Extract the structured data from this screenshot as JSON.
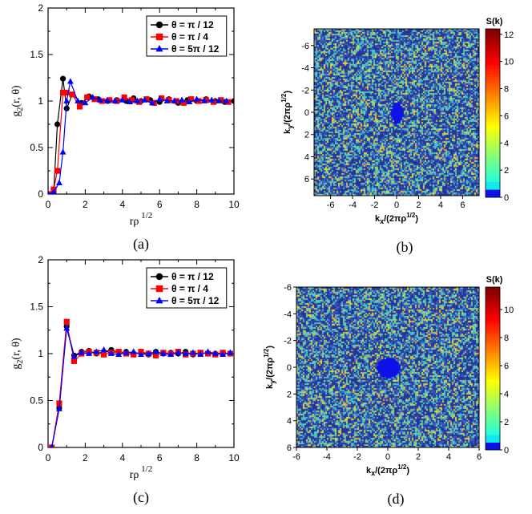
{
  "chart_data": [
    {
      "id": "a",
      "type": "line",
      "caption": "(a)",
      "xlabel": "rρ",
      "xlabel_sup": "1/2",
      "ylabel": "g",
      "ylabel_sub": "2",
      "ylabel_tail": "(r, θ)",
      "xlim": [
        0,
        10
      ],
      "ylim": [
        0,
        2
      ],
      "xticks": [
        "0",
        "2",
        "4",
        "6",
        "8",
        "10"
      ],
      "yticks": [
        "0",
        "0.5",
        "1",
        "1.5",
        "2"
      ],
      "series": [
        {
          "name": "θ = π / 12",
          "color": "#000000",
          "marker": "circle",
          "x": [
            0,
            0.3,
            0.5,
            0.8,
            1.0,
            1.3,
            1.8,
            2.2,
            2.7,
            3.2,
            3.7,
            4.2,
            4.6,
            5.0,
            5.5,
            6.0,
            6.5,
            7.0,
            7.5,
            8.0,
            8.5,
            9.0,
            9.5,
            10.0
          ],
          "y": [
            0,
            0.02,
            0.75,
            1.24,
            0.92,
            1.07,
            0.98,
            1.05,
            1.02,
            1.0,
            1.01,
            1.0,
            1.03,
            1.0,
            1.01,
            0.99,
            1.02,
            0.98,
            1.01,
            1.0,
            1.02,
            1.0,
            0.99,
            1.0
          ]
        },
        {
          "name": "θ = π  / 4",
          "color": "#ff0000",
          "marker": "square",
          "x": [
            0,
            0.3,
            0.5,
            0.8,
            1.0,
            1.3,
            1.7,
            2.1,
            2.5,
            2.9,
            3.3,
            3.7,
            4.1,
            4.5,
            4.9,
            5.3,
            5.7,
            6.1,
            6.5,
            6.9,
            7.3,
            7.7,
            8.1,
            8.5,
            8.9,
            9.3,
            9.7
          ],
          "y": [
            0,
            0.05,
            0.25,
            1.09,
            1.09,
            1.07,
            0.94,
            1.04,
            1.02,
            1.0,
            1.01,
            1.0,
            1.04,
            1.01,
            0.99,
            1.02,
            0.98,
            1.03,
            1.01,
            1.0,
            0.98,
            1.02,
            1.0,
            1.01,
            0.99,
            1.01,
            0.99
          ]
        },
        {
          "name": "θ = 5π  / 12",
          "color": "#0000ff",
          "marker": "triangle",
          "x": [
            0,
            0.3,
            0.6,
            0.8,
            1.0,
            1.2,
            1.6,
            2.0,
            2.4,
            2.8,
            3.2,
            3.6,
            4.0,
            4.4,
            4.8,
            5.2,
            5.6,
            6.0,
            6.4,
            6.8,
            7.2,
            7.6,
            8.0,
            8.4,
            8.8,
            9.2,
            9.6
          ],
          "y": [
            0,
            0.02,
            0.12,
            0.45,
            1.0,
            1.21,
            1.0,
            0.98,
            1.04,
            1.01,
            1.0,
            1.0,
            1.01,
            0.99,
            1.0,
            1.01,
            0.98,
            1.02,
            1.0,
            1.0,
            1.01,
            0.99,
            1.02,
            1.0,
            1.01,
            1.0,
            1.0
          ]
        }
      ]
    },
    {
      "id": "b",
      "type": "heatmap",
      "caption": "(b)",
      "xlabel": "k",
      "xlabel_sub": "x",
      "xlabel_tail": "/(2πρ",
      "xlabel_sup": "1/2",
      "xlabel_close": ")",
      "ylabel": "k",
      "ylabel_sub": "y",
      "ylabel_tail": "/(2πρ",
      "ylabel_sup": "1/2",
      "ylabel_close": ")",
      "xlim": [
        -7.5,
        7.5
      ],
      "ylim": [
        -7.5,
        7.5
      ],
      "xticks": [
        "-6",
        "-4",
        "-2",
        "0",
        "2",
        "4",
        "6"
      ],
      "yticks": [
        "-6",
        "-4",
        "-2",
        "0",
        "2",
        "4",
        "6"
      ],
      "colorbar_label": "S(k)",
      "colorbar_ticks": [
        "0",
        "2",
        "4",
        "6",
        "8",
        "10",
        "12"
      ],
      "colorbar_max": 12.4,
      "hole": {
        "rx": 0.55,
        "ry": 0.95
      }
    },
    {
      "id": "c",
      "type": "line",
      "caption": "(c)",
      "xlabel": "rρ",
      "xlabel_sup": "1/2",
      "ylabel": "g",
      "ylabel_sub": "2",
      "ylabel_tail": "(r, θ)",
      "xlim": [
        0,
        10
      ],
      "ylim": [
        0,
        2
      ],
      "xticks": [
        "0",
        "2",
        "4",
        "6",
        "8",
        "10"
      ],
      "yticks": [
        "0",
        "0.5",
        "1",
        "1.5",
        "2"
      ],
      "series": [
        {
          "name": "θ = π / 12",
          "color": "#000000",
          "marker": "circle",
          "x": [
            0.2,
            0.6,
            1.0,
            1.4,
            1.8,
            2.2,
            2.6,
            3.0,
            3.4,
            3.8,
            4.2,
            4.6,
            5.0,
            5.4,
            5.8,
            6.2,
            6.6,
            7.0,
            7.4,
            7.8,
            8.2,
            8.6,
            9.0,
            9.4,
            9.8
          ],
          "y": [
            0,
            0.42,
            1.29,
            0.98,
            1.02,
            1.03,
            1.0,
            1.02,
            1.04,
            1.01,
            1.02,
            1.0,
            1.01,
            0.99,
            1.02,
            1.0,
            1.01,
            1.0,
            1.02,
            0.99,
            1.01,
            1.0,
            1.0,
            1.01,
            1.0
          ]
        },
        {
          "name": "θ = π  / 4",
          "color": "#ff0000",
          "marker": "square",
          "x": [
            0.2,
            0.6,
            1.0,
            1.4,
            1.8,
            2.2,
            2.6,
            3.0,
            3.4,
            3.8,
            4.2,
            4.6,
            5.0,
            5.4,
            5.8,
            6.2,
            6.6,
            7.0,
            7.4,
            7.8,
            8.2,
            8.6,
            9.0,
            9.4,
            9.8
          ],
          "y": [
            0,
            0.47,
            1.34,
            0.92,
            1.0,
            1.02,
            1.01,
            0.99,
            1.01,
            1.02,
            1.0,
            0.99,
            1.02,
            1.0,
            0.98,
            1.01,
            1.0,
            1.02,
            0.99,
            1.0,
            1.01,
            1.0,
            0.99,
            1.01,
            1.0
          ]
        },
        {
          "name": "θ = 5π  / 12",
          "color": "#0000ff",
          "marker": "triangle",
          "x": [
            0.2,
            0.6,
            1.0,
            1.4,
            1.8,
            2.2,
            2.6,
            3.0,
            3.4,
            3.8,
            4.2,
            4.6,
            5.0,
            5.4,
            5.8,
            6.2,
            6.6,
            7.0,
            7.4,
            7.8,
            8.2,
            8.6,
            9.0,
            9.4,
            9.8
          ],
          "y": [
            0,
            0.41,
            1.27,
            0.97,
            1.01,
            1.0,
            1.02,
            1.04,
            1.0,
            0.99,
            1.01,
            1.02,
            0.99,
            1.0,
            1.02,
            1.0,
            0.99,
            1.01,
            1.0,
            1.01,
            0.99,
            1.02,
            1.0,
            0.99,
            1.01
          ]
        }
      ]
    },
    {
      "id": "d",
      "type": "heatmap",
      "caption": "(d)",
      "xlabel": "k",
      "xlabel_sub": "x",
      "xlabel_tail": "/(2πρ",
      "xlabel_sup": "1/2",
      "xlabel_close": ")",
      "ylabel": "k",
      "ylabel_sub": "y",
      "ylabel_tail": "/(2πρ",
      "ylabel_sup": "1/2",
      "ylabel_close": ")",
      "xlim": [
        -6,
        6
      ],
      "ylim": [
        -6,
        6
      ],
      "xticks": [
        "-6",
        "-4",
        "-2",
        "0",
        "2",
        "4",
        "6"
      ],
      "yticks": [
        "-6",
        "-4",
        "-2",
        "0",
        "2",
        "4",
        "6"
      ],
      "colorbar_label": "S(k)",
      "colorbar_ticks": [
        "0",
        "2",
        "4",
        "6",
        "8",
        "10"
      ],
      "colorbar_max": 11.6,
      "hole": {
        "rx": 0.75,
        "ry": 0.75
      }
    }
  ]
}
